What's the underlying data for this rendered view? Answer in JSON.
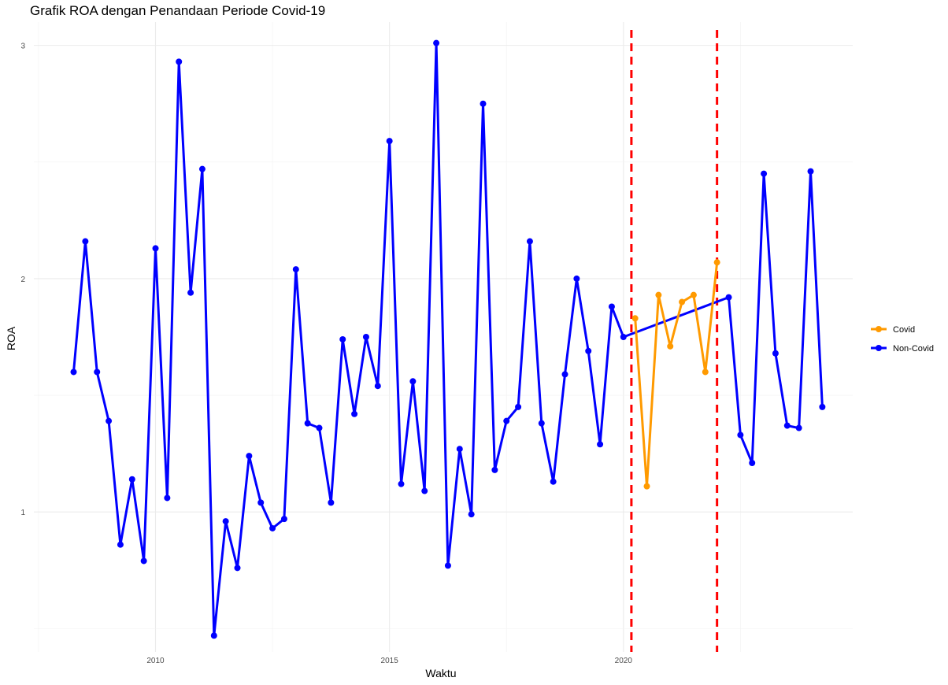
{
  "chart_data": {
    "type": "line",
    "title": "Grafik ROA dengan Penandaan Periode Covid-19",
    "xlabel": "Waktu",
    "ylabel": "ROA",
    "xlim": [
      2007.4,
      2024.9
    ],
    "ylim": [
      0.4,
      3.1
    ],
    "x_ticks": [
      {
        "value": 2010,
        "label": "2010"
      },
      {
        "value": 2015,
        "label": "2015"
      },
      {
        "value": 2020,
        "label": "2020"
      }
    ],
    "y_ticks": [
      {
        "value": 1,
        "label": "1"
      },
      {
        "value": 2,
        "label": "2"
      },
      {
        "value": 3,
        "label": "3"
      }
    ],
    "grid": true,
    "legend_position": "right",
    "vlines": [
      {
        "x": 2020.17,
        "color": "#ff0000",
        "style": "dashed"
      },
      {
        "x": 2022.0,
        "color": "#ff0000",
        "style": "dashed"
      }
    ],
    "series": [
      {
        "name": "Non-Covid",
        "color": "#0000ff",
        "points": [
          [
            2008.25,
            1.6
          ],
          [
            2008.5,
            2.16
          ],
          [
            2008.75,
            1.6
          ],
          [
            2009.0,
            1.39
          ],
          [
            2009.25,
            0.86
          ],
          [
            2009.5,
            1.14
          ],
          [
            2009.75,
            0.79
          ],
          [
            2010.0,
            2.13
          ],
          [
            2010.25,
            1.06
          ],
          [
            2010.5,
            2.93
          ],
          [
            2010.75,
            1.94
          ],
          [
            2011.0,
            2.47
          ],
          [
            2011.25,
            0.47
          ],
          [
            2011.5,
            0.96
          ],
          [
            2011.75,
            0.76
          ],
          [
            2012.0,
            1.24
          ],
          [
            2012.25,
            1.04
          ],
          [
            2012.5,
            0.93
          ],
          [
            2012.75,
            0.97
          ],
          [
            2013.0,
            2.04
          ],
          [
            2013.25,
            1.38
          ],
          [
            2013.5,
            1.36
          ],
          [
            2013.75,
            1.04
          ],
          [
            2014.0,
            1.74
          ],
          [
            2014.25,
            1.42
          ],
          [
            2014.5,
            1.75
          ],
          [
            2014.75,
            1.54
          ],
          [
            2015.0,
            2.59
          ],
          [
            2015.25,
            1.12
          ],
          [
            2015.5,
            1.56
          ],
          [
            2015.75,
            1.09
          ],
          [
            2016.0,
            3.01
          ],
          [
            2016.25,
            0.77
          ],
          [
            2016.5,
            1.27
          ],
          [
            2016.75,
            0.99
          ],
          [
            2017.0,
            2.75
          ],
          [
            2017.25,
            1.18
          ],
          [
            2017.5,
            1.39
          ],
          [
            2017.75,
            1.45
          ],
          [
            2018.0,
            2.16
          ],
          [
            2018.25,
            1.38
          ],
          [
            2018.5,
            1.13
          ],
          [
            2018.75,
            1.59
          ],
          [
            2019.0,
            2.0
          ],
          [
            2019.25,
            1.69
          ],
          [
            2019.5,
            1.29
          ],
          [
            2019.75,
            1.88
          ],
          [
            2020.0,
            1.75
          ],
          [
            2022.25,
            1.92
          ],
          [
            2022.5,
            1.33
          ],
          [
            2022.75,
            1.21
          ],
          [
            2023.0,
            2.45
          ],
          [
            2023.25,
            1.68
          ],
          [
            2023.5,
            1.37
          ],
          [
            2023.75,
            1.36
          ],
          [
            2024.0,
            2.46
          ],
          [
            2024.25,
            1.45
          ]
        ]
      },
      {
        "name": "Covid",
        "color": "#ff9a00",
        "points": [
          [
            2020.25,
            1.83
          ],
          [
            2020.5,
            1.11
          ],
          [
            2020.75,
            1.93
          ],
          [
            2021.0,
            1.71
          ],
          [
            2021.25,
            1.9
          ],
          [
            2021.5,
            1.93
          ],
          [
            2021.75,
            1.6
          ],
          [
            2022.0,
            2.07
          ]
        ]
      }
    ],
    "legend": [
      {
        "name": "Covid",
        "color": "#ff9a00"
      },
      {
        "name": "Non-Covid",
        "color": "#0000ff"
      }
    ]
  }
}
